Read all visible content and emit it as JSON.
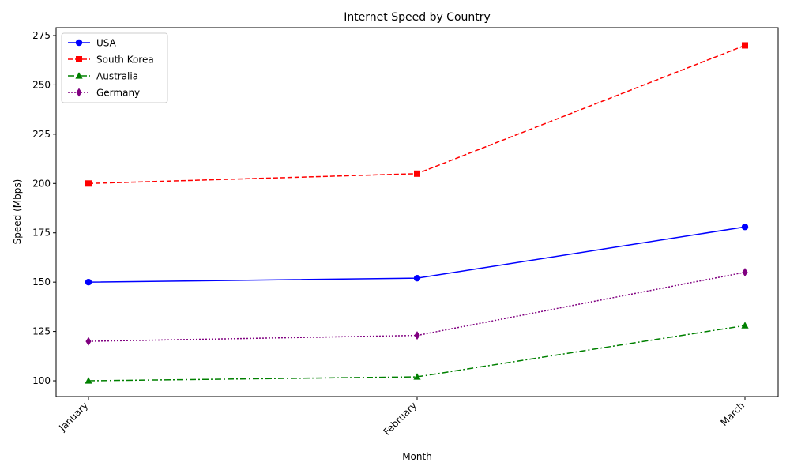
{
  "chart_data": {
    "type": "line",
    "title": "Internet Speed by Country",
    "xlabel": "Month",
    "ylabel": "Speed (Mbps)",
    "categories": [
      "January",
      "February",
      "March"
    ],
    "ylim": [
      92,
      279
    ],
    "yticks": [
      100,
      125,
      150,
      175,
      200,
      225,
      250,
      275
    ],
    "grid": false,
    "legend_position": "top-left",
    "series": [
      {
        "name": "USA",
        "values": [
          150,
          152,
          178
        ],
        "color": "#0000ff",
        "line_style": "solid",
        "marker": "circle"
      },
      {
        "name": "South Korea",
        "values": [
          200,
          205,
          270
        ],
        "color": "#ff0000",
        "line_style": "dashed",
        "marker": "square"
      },
      {
        "name": "Australia",
        "values": [
          100,
          102,
          128
        ],
        "color": "#008000",
        "line_style": "dashdot",
        "marker": "triangle"
      },
      {
        "name": "Germany",
        "values": [
          120,
          123,
          155
        ],
        "color": "#800080",
        "line_style": "dotted",
        "marker": "diamond"
      }
    ]
  }
}
